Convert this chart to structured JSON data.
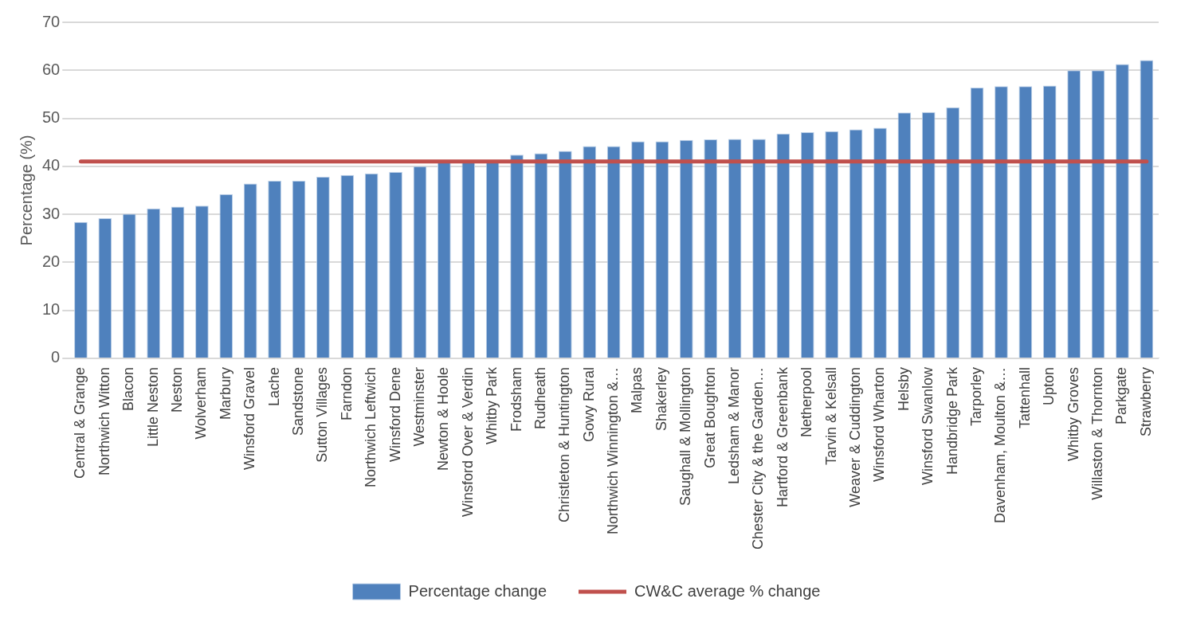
{
  "chart_data": {
    "type": "bar",
    "ylabel": "Percentage (%)",
    "categories": [
      "Central & Grange",
      "Northwich Witton",
      "Blacon",
      "Little Neston",
      "Neston",
      "Wolverham",
      "Marbury",
      "Winsford Gravel",
      "Lache",
      "Sandstone",
      "Sutton Villages",
      "Farndon",
      "Northwich Leftwich",
      "Winsford Dene",
      "Westminster",
      "Newton & Hoole",
      "Winsford Over & Verdin",
      "Whitby Park",
      "Frodsham",
      "Rudheath",
      "Christleton & Huntington",
      "Gowy Rural",
      "Northwich Winnington &…",
      "Malpas",
      "Shakerley",
      "Saughall & Mollington",
      "Great Boughton",
      "Ledsham & Manor",
      "Chester City & the Garden…",
      "Hartford & Greenbank",
      "Netherpool",
      "Tarvin & Kelsall",
      "Weaver & Cuddington",
      "Winsford Wharton",
      "Helsby",
      "Winsford Swanlow",
      "Handbridge Park",
      "Tarporley",
      "Davenham, Moulton &…",
      "Tattenhall",
      "Upton",
      "Whitby Groves",
      "Willaston & Thornton",
      "Parkgate",
      "Strawberry"
    ],
    "series": [
      {
        "name": "Percentage change",
        "color": "#4f81bd",
        "values": [
          28.4,
          29.2,
          30.1,
          31.2,
          31.6,
          31.8,
          34.2,
          36.4,
          37.0,
          37.0,
          37.8,
          38.2,
          38.5,
          38.8,
          40.0,
          41.0,
          41.0,
          41.0,
          42.4,
          42.7,
          43.2,
          44.2,
          44.2,
          45.2,
          45.2,
          45.5,
          45.6,
          45.7,
          45.7,
          46.8,
          47.1,
          47.3,
          47.7,
          48.0,
          51.2,
          51.3,
          52.3,
          56.4,
          56.7,
          56.7,
          56.8,
          60.0,
          60.0,
          61.3,
          62.1
        ]
      },
      {
        "name": "CW&C average % change",
        "type": "line",
        "color": "#c0504d",
        "values": [
          41,
          41,
          41,
          41,
          41,
          41,
          41,
          41,
          41,
          41,
          41,
          41,
          41,
          41,
          41,
          41,
          41,
          41,
          41,
          41,
          41,
          41,
          41,
          41,
          41,
          41,
          41,
          41,
          41,
          41,
          41,
          41,
          41,
          41,
          41,
          41,
          41,
          41,
          41,
          41,
          41,
          41,
          41,
          41,
          41
        ]
      }
    ],
    "ylim": [
      0,
      70
    ],
    "yticks": [
      0,
      10,
      20,
      30,
      40,
      50,
      60,
      70
    ],
    "grid": "y",
    "legend": "bottom",
    "marker": "none",
    "line_style": "solid"
  }
}
